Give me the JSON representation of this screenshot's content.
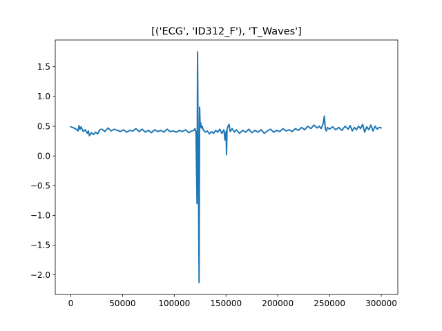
{
  "chart_data": {
    "type": "line",
    "title": "[('ECG', 'ID312_F'), 'T_Waves']",
    "xlabel": "",
    "ylabel": "",
    "xlim": [
      -15000,
      316000
    ],
    "ylim": [
      -2.33,
      1.95
    ],
    "x_ticks": [
      0,
      50000,
      100000,
      150000,
      200000,
      250000,
      300000
    ],
    "x_tick_labels": [
      "0",
      "50000",
      "100000",
      "150000",
      "200000",
      "250000",
      "300000"
    ],
    "y_ticks": [
      -2.0,
      -1.5,
      -1.0,
      -0.5,
      0.0,
      0.5,
      1.0,
      1.5
    ],
    "y_tick_labels": [
      "−2.0",
      "−1.5",
      "−1.0",
      "−0.5",
      "0.0",
      "0.5",
      "1.0",
      "1.5"
    ],
    "grid": false,
    "series": [
      {
        "color": "#1f77b4",
        "x": [
          0,
          3000,
          6000,
          7000,
          8000,
          9000,
          10000,
          12000,
          14000,
          16000,
          17000,
          18000,
          20000,
          22000,
          24000,
          26000,
          28000,
          30000,
          33000,
          36000,
          39000,
          42000,
          45000,
          48000,
          51000,
          54000,
          57000,
          60000,
          63000,
          66000,
          69000,
          72000,
          75000,
          78000,
          81000,
          84000,
          87000,
          90000,
          93000,
          96000,
          99000,
          102000,
          105000,
          108000,
          111000,
          114000,
          117000,
          119000,
          120000,
          121000,
          122000,
          122500,
          123000,
          124000,
          124500,
          125000,
          125500,
          126000,
          127000,
          128000,
          130000,
          132000,
          134000,
          136000,
          138000,
          140000,
          142000,
          144000,
          146000,
          148000,
          149000,
          150000,
          150500,
          151000,
          152000,
          153000,
          154000,
          156000,
          158000,
          160000,
          163000,
          166000,
          169000,
          172000,
          175000,
          178000,
          181000,
          184000,
          187000,
          190000,
          193000,
          196000,
          199000,
          202000,
          205000,
          208000,
          211000,
          214000,
          217000,
          220000,
          223000,
          226000,
          229000,
          232000,
          235000,
          238000,
          240000,
          242000,
          244000,
          245000,
          246000,
          247000,
          248000,
          250000,
          253000,
          256000,
          259000,
          262000,
          265000,
          268000,
          270000,
          272000,
          274000,
          276000,
          278000,
          280000,
          282000,
          284000,
          286000,
          288000,
          290000,
          292000,
          294000,
          296000,
          298000,
          300000
        ],
        "y": [
          0.49,
          0.47,
          0.44,
          0.42,
          0.51,
          0.45,
          0.49,
          0.41,
          0.44,
          0.38,
          0.42,
          0.34,
          0.39,
          0.36,
          0.4,
          0.37,
          0.44,
          0.45,
          0.41,
          0.47,
          0.42,
          0.45,
          0.43,
          0.41,
          0.44,
          0.4,
          0.43,
          0.42,
          0.46,
          0.41,
          0.45,
          0.4,
          0.43,
          0.39,
          0.44,
          0.41,
          0.43,
          0.4,
          0.45,
          0.41,
          0.42,
          0.4,
          0.43,
          0.41,
          0.44,
          0.39,
          0.42,
          0.43,
          0.46,
          0.4,
          -0.8,
          1.75,
          0.47,
          -2.13,
          0.82,
          0.5,
          0.56,
          0.47,
          0.5,
          0.44,
          0.4,
          0.42,
          0.37,
          0.41,
          0.38,
          0.43,
          0.4,
          0.45,
          0.38,
          0.44,
          0.27,
          0.41,
          0.02,
          0.45,
          0.5,
          0.53,
          0.41,
          0.46,
          0.4,
          0.44,
          0.38,
          0.43,
          0.4,
          0.45,
          0.39,
          0.43,
          0.4,
          0.44,
          0.38,
          0.42,
          0.45,
          0.4,
          0.43,
          0.41,
          0.46,
          0.42,
          0.44,
          0.41,
          0.46,
          0.43,
          0.48,
          0.44,
          0.5,
          0.46,
          0.52,
          0.47,
          0.5,
          0.46,
          0.55,
          0.67,
          0.45,
          0.42,
          0.48,
          0.45,
          0.49,
          0.44,
          0.48,
          0.43,
          0.5,
          0.45,
          0.51,
          0.42,
          0.48,
          0.44,
          0.5,
          0.46,
          0.53,
          0.4,
          0.49,
          0.44,
          0.52,
          0.42,
          0.5,
          0.45,
          0.48,
          0.47
        ]
      }
    ]
  }
}
